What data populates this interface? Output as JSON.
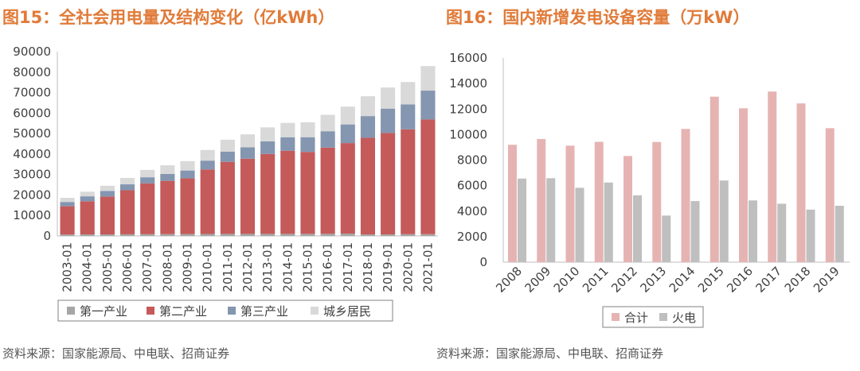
{
  "left": {
    "title": "图15：全社会用电量及结构变化（亿kWh）",
    "source": "资料来源：国家能源局、中电联、招商证券"
  },
  "right": {
    "title": "图16：国内新增发电设备容量（万kW）",
    "source": "资料来源：国家能源局、中电联、招商证券"
  },
  "chart_data": [
    {
      "type": "bar",
      "stacked": true,
      "categories": [
        "2003-01",
        "2004-01",
        "2005-01",
        "2006-01",
        "2007-01",
        "2008-01",
        "2009-01",
        "2010-01",
        "2011-01",
        "2012-01",
        "2013-01",
        "2014-01",
        "2015-01",
        "2016-01",
        "2017-01",
        "2018-01",
        "2019-01",
        "2020-01",
        "2021-01"
      ],
      "series": [
        {
          "name": "第一产业",
          "color": "#a6a6a6",
          "values": [
            700,
            750,
            750,
            800,
            850,
            900,
            950,
            980,
            1000,
            1000,
            1010,
            1010,
            1020,
            1040,
            1150,
            730,
            780,
            860,
            870
          ]
        },
        {
          "name": "第二产业",
          "color": "#c55a5a",
          "values": [
            13800,
            16200,
            18500,
            21500,
            24800,
            26000,
            27200,
            31500,
            35200,
            36700,
            39000,
            40600,
            40000,
            42100,
            44200,
            47200,
            49500,
            51200,
            56000
          ]
        },
        {
          "name": "第三产业",
          "color": "#8496b0",
          "values": [
            2100,
            2400,
            2750,
            2900,
            3000,
            3400,
            3800,
            4300,
            5000,
            5600,
            6200,
            6600,
            7200,
            8000,
            9100,
            10600,
            11900,
            12200,
            14100
          ]
        },
        {
          "name": "城乡居民",
          "color": "#d9d9d9",
          "values": [
            2000,
            2250,
            2500,
            3100,
            3600,
            4200,
            4600,
            5200,
            5800,
            6300,
            6800,
            7000,
            7300,
            8000,
            8700,
            9700,
            10300,
            10900,
            12000
          ]
        }
      ],
      "ylim": [
        0,
        90000
      ],
      "yticks": [
        0,
        10000,
        20000,
        30000,
        40000,
        50000,
        60000,
        70000,
        80000,
        90000
      ],
      "legend": "bottom"
    },
    {
      "type": "bar",
      "categories": [
        "2008",
        "2009",
        "2010",
        "2011",
        "2012",
        "2013",
        "2014",
        "2015",
        "2016",
        "2017",
        "2018",
        "2019"
      ],
      "series": [
        {
          "name": "合计",
          "color": "#e6b3b3",
          "values": [
            9200,
            9650,
            9130,
            9430,
            8320,
            9420,
            10440,
            12970,
            12060,
            13370,
            12440,
            10500
          ]
        },
        {
          "name": "火电",
          "color": "#bfbfbf",
          "values": [
            6550,
            6580,
            5830,
            6240,
            5240,
            3650,
            4790,
            6400,
            4840,
            4580,
            4120,
            4420
          ]
        }
      ],
      "ylim": [
        0,
        16000
      ],
      "yticks": [
        0,
        2000,
        4000,
        6000,
        8000,
        10000,
        12000,
        14000,
        16000
      ],
      "legend": "bottom"
    }
  ]
}
